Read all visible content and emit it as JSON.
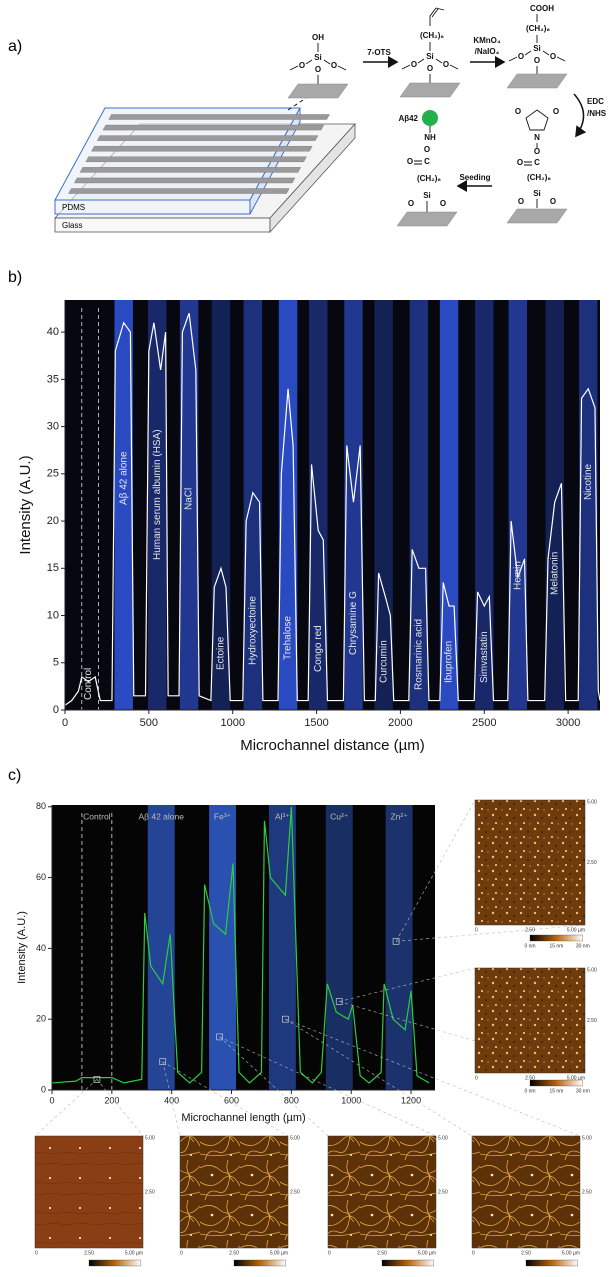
{
  "panel_labels": [
    "a)",
    "b)",
    "c)"
  ],
  "diagram": {
    "oh": "OH",
    "si": "Si",
    "o": "O",
    "n": "N",
    "c": "C",
    "reagent_1": "7-OTS",
    "ch2": "(CH₂)₆",
    "reagent_2a": "KMnO₄",
    "reagent_2b": "/NaIO₄",
    "cooh": "COOH",
    "reagent_3a": "EDC",
    "reagent_3b": "/NHS",
    "peptide": "Aβ42",
    "nh": "NH",
    "step_4": "Seeding",
    "layer_top": "PDMS",
    "layer_bottom": "Glass"
  },
  "chart_data": [
    {
      "type": "line",
      "xlabel": "Microchannel distance  (µm)",
      "ylabel": "Intensity (A.U.)",
      "background": "#07070f",
      "band_color": "#2f52d6",
      "channel_labels": [
        "Control",
        "Aβ 42 alone",
        "Human serum albumin (HSA)",
        "NaCl",
        "Ectoine",
        "Hydroxyectoine",
        "Trehalose",
        "Congo red",
        "Chrysamine G",
        "Curcumin",
        "Rosmarinic acid",
        "Ibuprofen",
        "Simvastatin",
        "Hemin",
        "Melatonin",
        "Nicotine"
      ],
      "x": [
        0,
        40,
        80,
        100,
        140,
        180,
        210,
        280,
        300,
        350,
        390,
        410,
        480,
        500,
        530,
        570,
        600,
        615,
        680,
        700,
        740,
        780,
        800,
        870,
        890,
        930,
        960,
        985,
        1060,
        1080,
        1120,
        1160,
        1180,
        1270,
        1290,
        1330,
        1360,
        1385,
        1450,
        1470,
        1510,
        1540,
        1565,
        1660,
        1680,
        1720,
        1760,
        1785,
        1850,
        1870,
        1910,
        1940,
        1960,
        2050,
        2070,
        2110,
        2150,
        2170,
        2235,
        2255,
        2290,
        2320,
        2345,
        2440,
        2460,
        2500,
        2530,
        2555,
        2640,
        2660,
        2700,
        2740,
        2760,
        2860,
        2880,
        2920,
        2960,
        2985,
        3060,
        3080,
        3120,
        3160,
        3180,
        3190
      ],
      "series": [
        {
          "color": "#ffffff",
          "values": [
            0.5,
            1,
            2,
            3.5,
            3,
            3.5,
            1,
            1,
            38,
            41,
            40,
            1.5,
            1.5,
            38,
            41,
            36,
            40,
            1.5,
            1.5,
            40,
            42,
            36,
            1.5,
            1,
            13,
            15,
            13,
            1,
            1,
            20,
            23,
            22,
            1,
            1,
            25,
            34,
            28,
            1,
            1,
            26,
            19,
            18,
            1,
            1,
            28,
            22,
            28,
            1,
            1,
            14.5,
            12,
            10,
            1,
            1,
            17,
            15,
            15,
            1,
            1,
            13.5,
            11,
            11,
            1,
            1,
            12.5,
            11,
            12,
            1,
            1,
            20,
            14,
            16,
            1,
            1,
            16,
            22,
            24,
            1,
            1,
            33,
            34,
            32,
            2,
            1
          ]
        }
      ],
      "xlim": [
        0,
        3190
      ],
      "ylim": [
        0,
        43.4
      ],
      "xticks": [
        0,
        500,
        1000,
        1500,
        2000,
        2500,
        3000
      ],
      "yticks": [
        0,
        5,
        10,
        15,
        20,
        25,
        30,
        35,
        40
      ]
    },
    {
      "type": "line",
      "xlabel": "Microchannel length (µm)",
      "ylabel": "Intensity (A.U.)",
      "background": "#050505",
      "band_color": "#2a50b0",
      "channel_labels": [
        "Control",
        "Aβ 42 alone",
        "Fe³⁺",
        "Al³⁺",
        "Cu²⁺",
        "Zn²⁺"
      ],
      "x": [
        0,
        80,
        100,
        150,
        200,
        240,
        300,
        310,
        330,
        370,
        395,
        420,
        460,
        500,
        510,
        540,
        580,
        605,
        625,
        660,
        700,
        710,
        730,
        780,
        800,
        830,
        870,
        900,
        920,
        950,
        990,
        1005,
        1030,
        1060,
        1100,
        1110,
        1140,
        1180,
        1200,
        1220,
        1260
      ],
      "series": [
        {
          "color": "#2ecc40",
          "values": [
            2,
            2.5,
            3.5,
            3.5,
            3.5,
            2,
            3,
            50,
            35,
            30,
            44,
            5,
            2,
            5,
            58,
            47,
            44,
            64,
            5,
            2,
            5,
            76,
            60,
            55,
            80,
            5,
            2,
            5,
            30,
            22,
            20,
            24,
            4,
            2,
            5,
            30,
            20,
            17,
            28,
            4,
            2
          ]
        }
      ],
      "xlim": [
        0,
        1280
      ],
      "ylim": [
        0,
        80.5
      ],
      "xticks": [
        0,
        200,
        400,
        600,
        800,
        1000,
        1200
      ],
      "yticks": [
        0,
        20,
        40,
        60,
        80
      ]
    }
  ],
  "afm": {
    "tick_labels": [
      "0",
      "2.50",
      "5.00"
    ],
    "unit_label": "5.00 µm",
    "colorbar_labels": [
      "0 nm",
      "15 nm",
      "30 nm"
    ]
  }
}
